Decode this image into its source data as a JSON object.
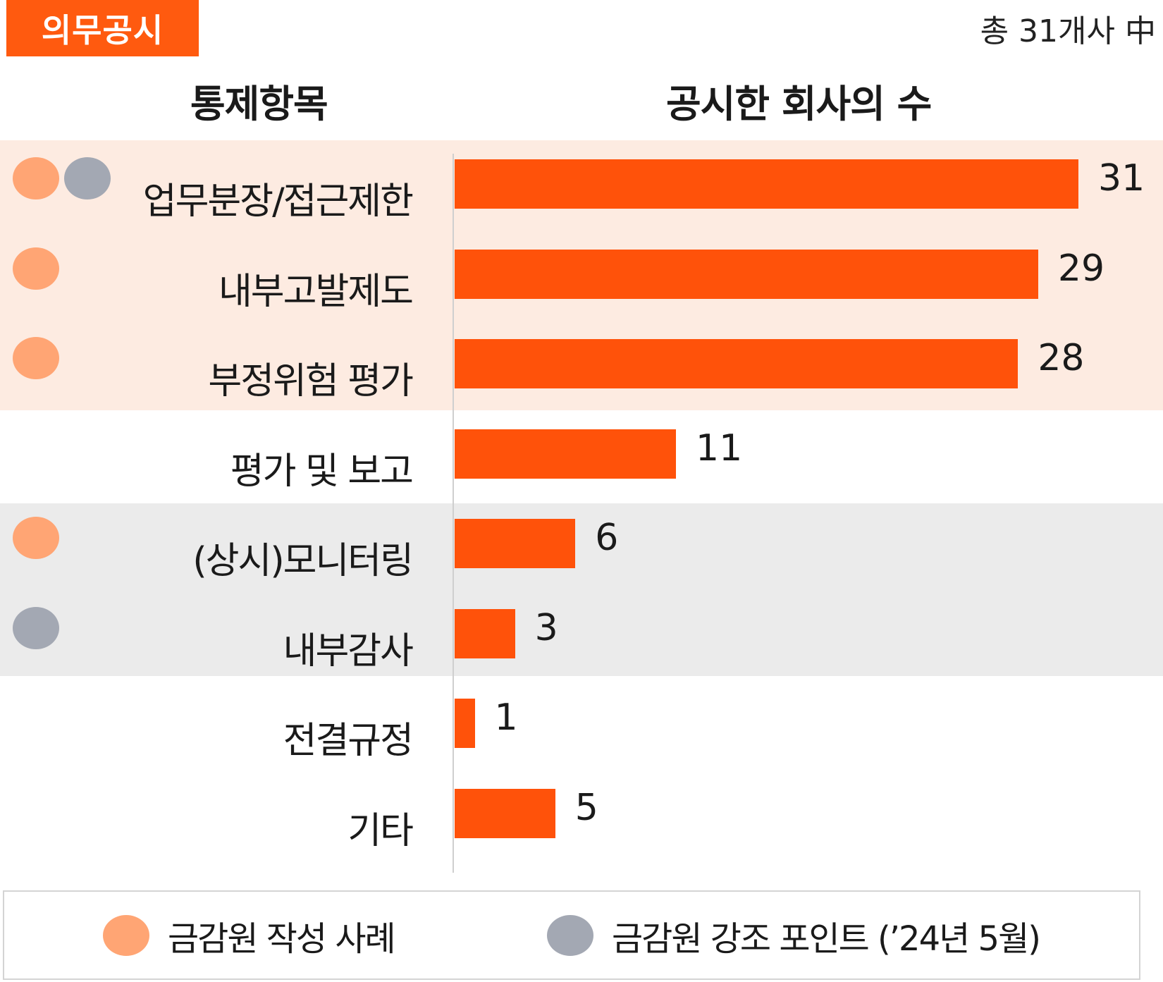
{
  "badge": "의무공시",
  "total_note": "총 31개사 中",
  "headers": {
    "left": "통제항목",
    "right": "공시한 회사의 수"
  },
  "colors": {
    "bar": "#ff520a",
    "badge": "#ff5a0f",
    "fss_example": "#ffa574",
    "fss_emphasis": "#a3a8b3"
  },
  "chart_data": {
    "type": "bar",
    "orientation": "horizontal",
    "categories": [
      "업무분장/접근제한",
      "내부고발제도",
      "부정위험 평가",
      "평가 및 보고",
      "(상시)모니터링",
      "내부감사",
      "전결규정",
      "기타"
    ],
    "values": [
      31,
      29,
      28,
      11,
      6,
      3,
      1,
      5
    ],
    "xlim": [
      0,
      31
    ],
    "markers": [
      [
        "fss_example",
        "fss_emphasis"
      ],
      [
        "fss_example"
      ],
      [
        "fss_example"
      ],
      [],
      [
        "fss_example"
      ],
      [
        "fss_emphasis"
      ],
      [],
      []
    ],
    "legend": [
      {
        "key": "fss_example",
        "label": "금감원 작성 사례"
      },
      {
        "key": "fss_emphasis",
        "label": "금감원 강조 포인트 (’24년 5월)"
      }
    ],
    "legend_position": "bottom"
  }
}
